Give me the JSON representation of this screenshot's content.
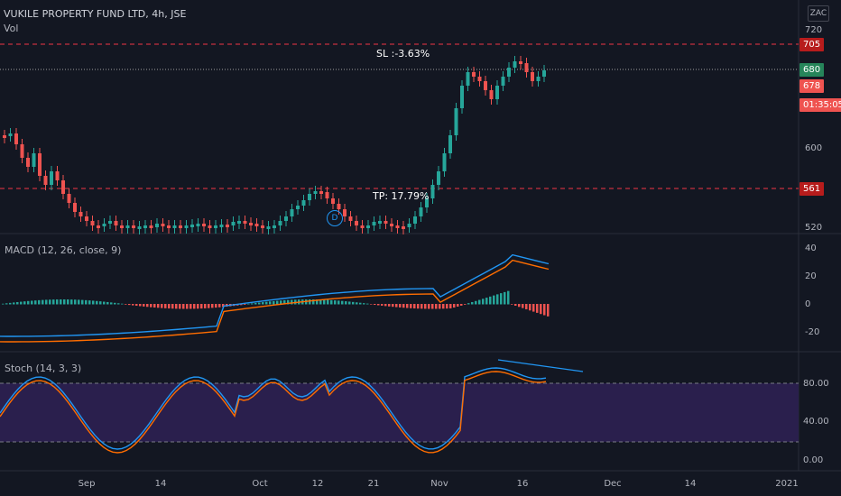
{
  "header": {
    "symbol_title": "VUKILE PROPERTY FUND LTD, 4h, JSE",
    "volume_label": "Vol",
    "currency_button": "ZAC"
  },
  "annotations": {
    "stop_loss": "SL :-3.63%",
    "take_profit": "TP: 17.79%",
    "dividend_marker": "D"
  },
  "price_axis": {
    "ticks": [
      "720",
      "600",
      "520"
    ],
    "tags": [
      {
        "label": "705",
        "color": "#b71c1c"
      },
      {
        "label": "680",
        "color": "#26855a"
      },
      {
        "label": "678",
        "color": "#ef5350"
      },
      {
        "label": "01:35:05",
        "color": "#ef5350"
      },
      {
        "label": "561",
        "color": "#b71c1c"
      }
    ]
  },
  "macd": {
    "label": "MACD (12, 26, close, 9)",
    "ticks": [
      "40",
      "20",
      "0",
      "-20"
    ],
    "macd_color": "#2196f3",
    "signal_color": "#ff6d00"
  },
  "stoch": {
    "label": "Stoch (14, 3, 3)",
    "ticks": [
      "80.00",
      "40.00",
      "0.00"
    ],
    "band_color": "#2a1f4d",
    "k_color": "#2196f3",
    "d_color": "#ff6d00"
  },
  "time_axis": {
    "ticks": [
      "Sep",
      "14",
      "Oct",
      "12",
      "21",
      "Nov",
      "16",
      "Dec",
      "14",
      "2021"
    ]
  },
  "colors": {
    "background": "#131722",
    "up_candle": "#26a69a",
    "down_candle": "#ef5350",
    "level_line": "#f23645",
    "trend_line": "#2196f3"
  }
}
